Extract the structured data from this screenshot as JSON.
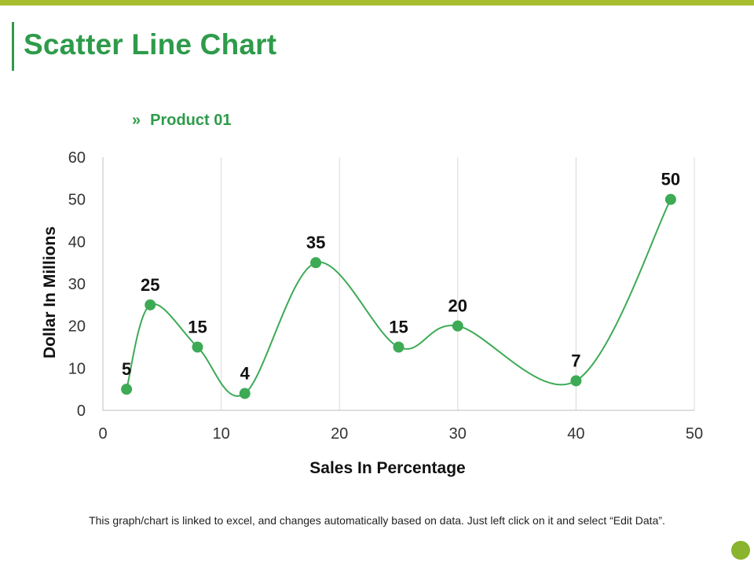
{
  "page": {
    "title": "Scatter Line Chart",
    "footnote": "This graph/chart is linked to excel, and changes automatically based on data. Just left click on it and select “Edit Data”."
  },
  "legend": {
    "glyph": "»",
    "label": "Product 01"
  },
  "colors": {
    "accent": "#2e9b4a",
    "top_bar": "#a8be2f",
    "corner_dot": "#8ab32e"
  },
  "chart_data": {
    "type": "scatter",
    "mode": "smooth-line-with-markers",
    "xlabel": "Sales In Percentage",
    "ylabel": "Dollar In Millions",
    "xlim": [
      0,
      50
    ],
    "ylim": [
      0,
      60
    ],
    "xticks": [
      0,
      10,
      20,
      30,
      40,
      50
    ],
    "yticks": [
      0,
      10,
      20,
      30,
      40,
      50,
      60
    ],
    "vertical_grid": true,
    "legend_position": "top-left",
    "series": [
      {
        "name": "Product 01",
        "color": "#3daa55",
        "points": [
          {
            "x": 2,
            "y": 5
          },
          {
            "x": 4,
            "y": 25
          },
          {
            "x": 8,
            "y": 15
          },
          {
            "x": 12,
            "y": 4
          },
          {
            "x": 18,
            "y": 35
          },
          {
            "x": 25,
            "y": 15
          },
          {
            "x": 30,
            "y": 20
          },
          {
            "x": 40,
            "y": 7
          },
          {
            "x": 48,
            "y": 50
          }
        ]
      }
    ]
  }
}
